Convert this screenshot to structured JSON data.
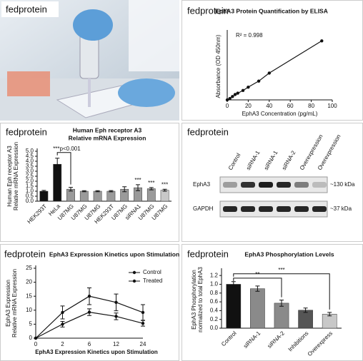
{
  "photo": {
    "brand": "fedprotein"
  },
  "blot": {
    "brand": "fedprotein",
    "lanes": [
      "Control",
      "siRNA-1",
      "siRNA-1",
      "siRNA-2",
      "Overexpression",
      "Overexpression"
    ],
    "rows": [
      {
        "name": "EphA3",
        "size": "~130 kDa"
      },
      {
        "name": "GAPDH",
        "size": "~37 kDa"
      }
    ]
  },
  "chart_data": [
    {
      "type": "line",
      "brand": "fedprotein",
      "title": "EphA3 Protein Quantification by ELISA",
      "annotation": "R² = 0.998",
      "xlabel": "EphA3 Concentration (pg/mL)",
      "ylabel": "Absorbance (OD 450nm)",
      "x": [
        0,
        2.5,
        5,
        7.5,
        10,
        15,
        20,
        30,
        40,
        90
      ],
      "values": [
        0,
        0.02,
        0.05,
        0.08,
        0.1,
        0.14,
        0.19,
        0.28,
        0.4,
        0.88
      ],
      "color": "#111111",
      "xlim": [
        0,
        100
      ],
      "xticks": [
        0,
        20,
        40,
        60,
        80,
        100
      ],
      "ylim": [
        0,
        1
      ]
    },
    {
      "type": "bar",
      "brand": "fedprotein",
      "title": [
        "Human Eph receptor A3",
        "Relative mRNA Expression"
      ],
      "ylabel": [
        "Human Eph receptor A3",
        "Relative mRNA Expression"
      ],
      "categories": [
        "HEK293T",
        "HeLa",
        "U87MG",
        "U87MG",
        "U87MG",
        "HEK293T",
        "U87MG",
        "siRNA1",
        "U87MG",
        "U87MG"
      ],
      "values": [
        1.0,
        3.7,
        1.2,
        1.0,
        1.0,
        1.0,
        1.2,
        1.35,
        1.25,
        1.1
      ],
      "errors": [
        0.08,
        0.6,
        0.18,
        0.05,
        0.05,
        0.06,
        0.25,
        0.3,
        0.12,
        0.1
      ],
      "colors": [
        "#111111",
        "#111111",
        "#9a9a9a",
        "#9a9a9a",
        "#9a9a9a",
        "#9a9a9a",
        "#9a9a9a",
        "#9a9a9a",
        "#9a9a9a",
        "#c8c8c8"
      ],
      "ylim": [
        0,
        5
      ],
      "yticks": [
        {
          "value": 0,
          "label": "0.0"
        },
        {
          "value": 0.5,
          "label": "0.5"
        },
        {
          "value": 1,
          "label": "1.0"
        },
        {
          "value": 1.5,
          "label": "1.5"
        },
        {
          "value": 2,
          "label": "2.0"
        },
        {
          "value": 2.5,
          "label": "2.5"
        },
        {
          "value": 3,
          "label": "3.0"
        },
        {
          "value": 3.5,
          "label": "3.5"
        },
        {
          "value": 4,
          "label": "4.0"
        },
        {
          "value": 4.5,
          "label": "4.5"
        },
        {
          "value": 5,
          "label": "5.0"
        }
      ],
      "annotations": [
        "***p<0.001",
        "***",
        "***",
        "***"
      ]
    },
    {
      "type": "line",
      "brand": "fedprotein",
      "title": "EphA3 Expression Kinetics upon Stimulation",
      "xlabel": "EphA3 Expression Kinetics upon Stimulation",
      "ylabel": [
        "EphA3 Expression",
        "Relative mRNA Expression"
      ],
      "categories": [
        "0",
        "2",
        "6",
        "12",
        "24"
      ],
      "series": [
        {
          "name": "Control",
          "color": "#111111",
          "values": [
            0,
            5,
            9.3,
            7.8,
            5.3
          ],
          "errors": [
            0,
            1,
            1.2,
            1.2,
            1
          ]
        },
        {
          "name": "Treated",
          "color": "#111111",
          "values": [
            0,
            9.2,
            15,
            12.8,
            9.2
          ],
          "errors": [
            0,
            2.3,
            3,
            3,
            2.8
          ]
        }
      ],
      "ylim": [
        0,
        25
      ],
      "yticks": [
        0,
        5,
        10,
        15,
        20,
        25
      ],
      "legend": "top-right"
    },
    {
      "type": "bar",
      "brand": "fedprotein",
      "title": "EphA3 Phosphorylation Levels",
      "ylabel": [
        "EphA3 Phosphorylation",
        "normalized to total EphA3"
      ],
      "categories": [
        "Control",
        "siRNA-1",
        "siRNA-2",
        "Inhibitions",
        "Overexpress"
      ],
      "values": [
        1.0,
        0.9,
        0.57,
        0.41,
        0.32
      ],
      "errors": [
        0.06,
        0.06,
        0.07,
        0.05,
        0.04
      ],
      "colors": [
        "#111111",
        "#8a8a8a",
        "#8a8a8a",
        "#555555",
        "#c8c8c8"
      ],
      "ylim": [
        0,
        1.3
      ],
      "yticks": [
        {
          "value": 0,
          "label": "0.0"
        },
        {
          "value": 0.2,
          "label": "0.2"
        },
        {
          "value": 0.4,
          "label": "0.4"
        },
        {
          "value": 0.6,
          "label": "0.6"
        },
        {
          "value": 0.8,
          "label": "0.8"
        },
        {
          "value": 1.0,
          "label": "1.0"
        },
        {
          "value": 1.2,
          "label": "1.2"
        }
      ],
      "annotations": [
        "**",
        "***"
      ]
    }
  ]
}
